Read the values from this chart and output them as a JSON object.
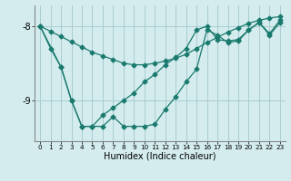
{
  "xlabel": "Humidex (Indice chaleur)",
  "bg_color": "#d4ecee",
  "grid_color": "#aacdd1",
  "line_color": "#1a7a6e",
  "xlim": [
    -0.5,
    23.5
  ],
  "ylim": [
    -9.55,
    -7.72
  ],
  "yticks": [
    -9,
    -8
  ],
  "xticks": [
    0,
    1,
    2,
    3,
    4,
    5,
    6,
    7,
    8,
    9,
    10,
    11,
    12,
    13,
    14,
    15,
    16,
    17,
    18,
    19,
    20,
    21,
    22,
    23
  ],
  "series1_x": [
    0,
    1,
    2,
    3,
    4,
    5,
    6,
    7,
    8,
    9,
    10,
    11,
    12,
    13,
    14,
    15,
    16,
    17,
    18,
    19,
    20,
    21,
    22,
    23
  ],
  "series1_y": [
    -8.0,
    -8.3,
    -8.55,
    -9.0,
    -9.35,
    -9.35,
    -9.2,
    -9.1,
    -9.0,
    -8.9,
    -8.75,
    -8.65,
    -8.52,
    -8.42,
    -8.3,
    -8.05,
    -8.0,
    -8.18,
    -8.2,
    -8.18,
    -8.05,
    -7.95,
    -8.12,
    -7.95
  ],
  "series2_x": [
    0,
    2,
    3,
    4,
    5,
    6,
    7,
    8,
    9,
    10,
    11,
    12,
    13,
    14,
    15,
    16,
    17,
    18,
    19,
    20,
    21,
    22,
    23
  ],
  "series2_y": [
    -8.0,
    -8.55,
    -9.0,
    -9.35,
    -9.35,
    -9.35,
    -9.22,
    -9.35,
    -9.35,
    -9.35,
    -9.32,
    -9.12,
    -8.95,
    -8.75,
    -8.58,
    -8.05,
    -8.12,
    -8.22,
    -8.2,
    -8.05,
    -7.95,
    -8.1,
    -7.92
  ],
  "series3_x": [
    0,
    1,
    2,
    3,
    4,
    5,
    6,
    7,
    8,
    9,
    10,
    11,
    12,
    13,
    14,
    15,
    16,
    17,
    18,
    19,
    20,
    21,
    22,
    23
  ],
  "series3_y": [
    -8.0,
    -8.07,
    -8.14,
    -8.21,
    -8.28,
    -8.35,
    -8.4,
    -8.45,
    -8.5,
    -8.52,
    -8.52,
    -8.5,
    -8.47,
    -8.43,
    -8.38,
    -8.3,
    -8.22,
    -8.15,
    -8.08,
    -8.02,
    -7.96,
    -7.92,
    -7.89,
    -7.87
  ]
}
